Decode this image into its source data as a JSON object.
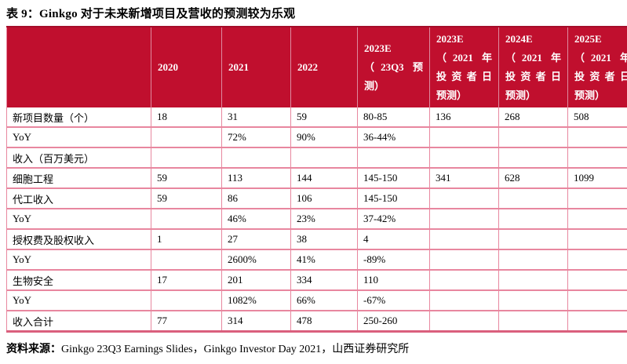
{
  "title": "表 9：Ginkgo 对于未来新增项目及营收的预测较为乐观",
  "colors": {
    "header_bg": "#c00f2e",
    "header_top_line": "#a50d2a",
    "grid_border": "#e8879f",
    "header_divider": "#dd8ba0",
    "header_text": "#ffffff",
    "body_text": "#000000"
  },
  "table": {
    "columns": [
      {
        "lines": [
          ""
        ]
      },
      {
        "lines": [
          "2020"
        ]
      },
      {
        "lines": [
          "2021"
        ]
      },
      {
        "lines": [
          "2022"
        ]
      },
      {
        "lines": [
          "2023E",
          "（23Q3 预",
          "测）"
        ]
      },
      {
        "lines": [
          "2023E",
          "（2021 年",
          "投资者日",
          "预测）"
        ]
      },
      {
        "lines": [
          "2024E",
          "（2021 年",
          "投资者日",
          "预测）"
        ]
      },
      {
        "lines": [
          "2025E",
          "（2021 年",
          "投资者日",
          "预测）"
        ]
      }
    ],
    "rows": [
      [
        "新项目数量（个）",
        "18",
        "31",
        "59",
        "80-85",
        "136",
        "268",
        "508"
      ],
      [
        "YoY",
        "",
        "72%",
        "90%",
        "36-44%",
        "",
        "",
        ""
      ],
      [
        "收入（百万美元）",
        "",
        "",
        "",
        "",
        "",
        "",
        ""
      ],
      [
        "细胞工程",
        "59",
        "113",
        "144",
        "145-150",
        "341",
        "628",
        "1099"
      ],
      [
        "代工收入",
        "59",
        "86",
        "106",
        "145-150",
        "",
        "",
        ""
      ],
      [
        "YoY",
        "",
        "46%",
        "23%",
        "37-42%",
        "",
        "",
        ""
      ],
      [
        "授权费及股权收入",
        "1",
        "27",
        "38",
        "4",
        "",
        "",
        ""
      ],
      [
        "YoY",
        "",
        "2600%",
        "41%",
        "-89%",
        "",
        "",
        ""
      ],
      [
        "生物安全",
        "17",
        "201",
        "334",
        "110",
        "",
        "",
        ""
      ],
      [
        "YoY",
        "",
        "1082%",
        "66%",
        "-67%",
        "",
        "",
        ""
      ],
      [
        "收入合计",
        "77",
        "314",
        "478",
        "250-260",
        "",
        "",
        ""
      ]
    ]
  },
  "footer": {
    "prefix": "资料来源：",
    "text": "Ginkgo 23Q3 Earnings Slides，Ginkgo Investor Day 2021，山西证券研究所"
  }
}
